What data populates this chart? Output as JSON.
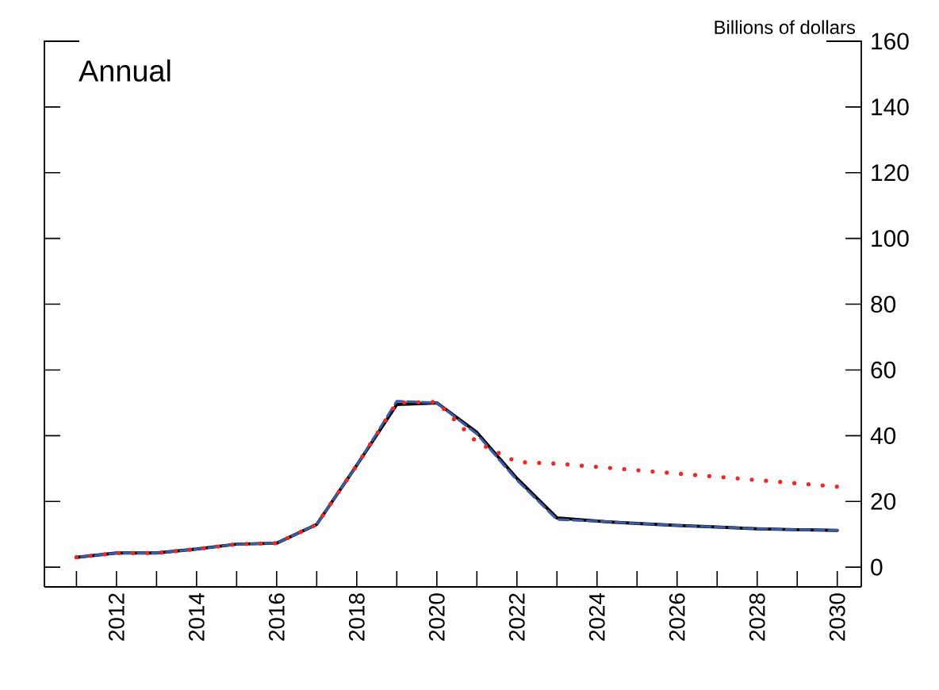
{
  "chart_data": {
    "type": "line",
    "ylabel": "Billions of dollars",
    "annotations": [
      "Annual"
    ],
    "x": [
      2011,
      2012,
      2013,
      2014,
      2015,
      2016,
      2017,
      2018,
      2019,
      2020,
      2021,
      2022,
      2023,
      2024,
      2025,
      2026,
      2027,
      2028,
      2029,
      2030
    ],
    "series": [
      {
        "color": "#000000",
        "line_style": "solid",
        "values": [
          3,
          4.3,
          4.3,
          5.5,
          7,
          7.3,
          13,
          31,
          49.5,
          50,
          41,
          27,
          15,
          14,
          13.3,
          12.7,
          12.2,
          11.7,
          11.4,
          11.2
        ]
      },
      {
        "color": "#3a5ba9",
        "line_style": "dashed",
        "values": [
          3,
          4.3,
          4.3,
          5.5,
          7,
          7.3,
          13,
          31,
          50.5,
          50,
          40.5,
          26.5,
          14.5,
          14,
          13.3,
          12.7,
          12.2,
          11.7,
          11.4,
          11.2
        ]
      },
      {
        "color": "#ff2020",
        "line_style": "dotted",
        "values": [
          3,
          4.3,
          4.3,
          5.5,
          7,
          7.3,
          13,
          31,
          50,
          50.3,
          38,
          32,
          31.5,
          30.5,
          29.5,
          28.5,
          27.5,
          26.5,
          25.5,
          24.5
        ]
      }
    ],
    "xlim": [
      2010.2,
      2030.6
    ],
    "ylim": [
      -6,
      160
    ],
    "xticks": [
      {
        "value": 2011,
        "label": null
      },
      2012,
      {
        "value": 2013,
        "label": null
      },
      2014,
      {
        "value": 2015,
        "label": null
      },
      2016,
      {
        "value": 2017,
        "label": null
      },
      2018,
      {
        "value": 2019,
        "label": null
      },
      2020,
      {
        "value": 2021,
        "label": null
      },
      2022,
      {
        "value": 2023,
        "label": null
      },
      2024,
      {
        "value": 2025,
        "label": null
      },
      2026,
      {
        "value": 2027,
        "label": null
      },
      2028,
      {
        "value": 2029,
        "label": null
      },
      2030
    ],
    "yticks": [
      0,
      20,
      40,
      60,
      80,
      100,
      120,
      140,
      160
    ]
  }
}
